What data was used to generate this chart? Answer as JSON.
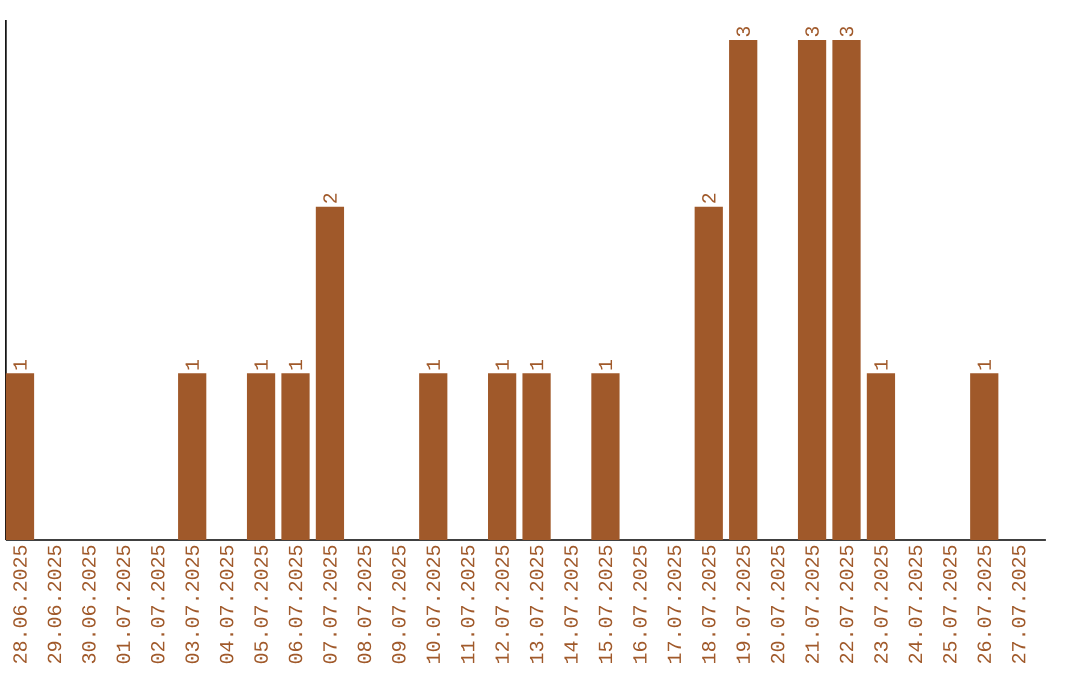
{
  "chart_data": {
    "type": "bar",
    "color": "#a0592a",
    "categories": [
      "28.06.2025",
      "29.06.2025",
      "30.06.2025",
      "01.07.2025",
      "02.07.2025",
      "03.07.2025",
      "04.07.2025",
      "05.07.2025",
      "06.07.2025",
      "07.07.2025",
      "08.07.2025",
      "09.07.2025",
      "10.07.2025",
      "11.07.2025",
      "12.07.2025",
      "13.07.2025",
      "14.07.2025",
      "15.07.2025",
      "16.07.2025",
      "17.07.2025",
      "18.07.2025",
      "19.07.2025",
      "20.07.2025",
      "21.07.2025",
      "22.07.2025",
      "23.07.2025",
      "24.07.2025",
      "25.07.2025",
      "26.07.2025",
      "27.07.2025"
    ],
    "values": [
      1,
      0,
      0,
      0,
      0,
      1,
      0,
      1,
      1,
      2,
      0,
      0,
      1,
      0,
      1,
      1,
      0,
      1,
      0,
      0,
      2,
      3,
      0,
      3,
      3,
      1,
      0,
      0,
      1,
      0
    ],
    "value_labels": [
      "1",
      null,
      null,
      null,
      null,
      "1",
      null,
      "1",
      "1",
      "2",
      null,
      null,
      "1",
      null,
      "1",
      "1",
      null,
      "1",
      null,
      null,
      "2",
      "3",
      null,
      "3",
      "3",
      "1",
      null,
      null,
      "1",
      null
    ],
    "ylim": [
      0,
      3
    ],
    "tick_labels": "x",
    "grid": false
  }
}
